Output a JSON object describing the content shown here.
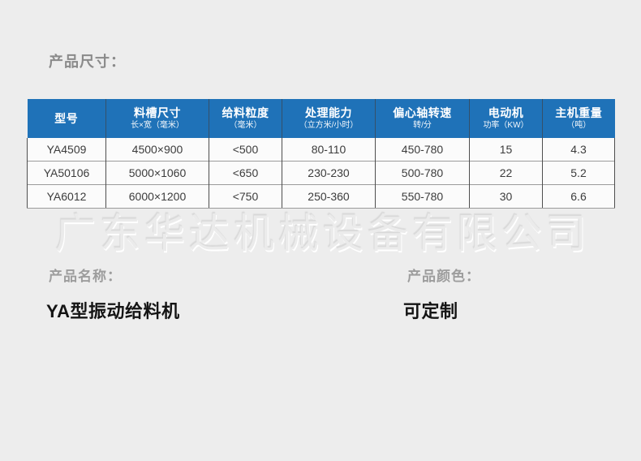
{
  "page": {
    "section_title": "产品尺寸：",
    "watermark": "广东华达机械设备有限公司",
    "product_name_label": "产品名称：",
    "product_name_value": "YA型振动给料机",
    "product_color_label": "产品颜色：",
    "product_color_value": "可定制"
  },
  "table": {
    "columns": [
      {
        "label": "型号",
        "sub": ""
      },
      {
        "label": "料槽尺寸",
        "sub": "长×宽（毫米）"
      },
      {
        "label": "给料粒度",
        "sub": "（毫米）"
      },
      {
        "label": "处理能力",
        "sub": "（立方米/小时）"
      },
      {
        "label": "偏心轴转速",
        "sub": "转/分"
      },
      {
        "label": "电动机",
        "sub": "功率（KW）"
      },
      {
        "label": "主机重量",
        "sub": "（吨）"
      }
    ],
    "rows": [
      [
        "YA4509",
        "4500×900",
        "<500",
        "80-110",
        "450-780",
        "15",
        "4.3"
      ],
      [
        "YA50106",
        "5000×1060",
        "<650",
        "230-230",
        "500-780",
        "22",
        "5.2"
      ],
      [
        "YA6012",
        "6000×1200",
        "<750",
        "250-360",
        "550-780",
        "30",
        "6.6"
      ]
    ]
  },
  "colors": {
    "page_bg": "#ededed",
    "header_bg": "#1f72b8",
    "header_text": "#ffffff",
    "body_text": "#3c3c3c",
    "row_bg": "#fbfbfb"
  }
}
